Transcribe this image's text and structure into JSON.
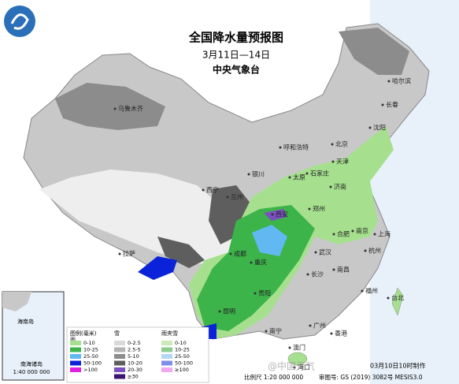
{
  "header": {
    "title": "全国降水量预报图",
    "period": "3月11日—14日",
    "agency": "中央气象台"
  },
  "cities": [
    "乌鲁木齐",
    "哈尔滨",
    "长春",
    "沈阳",
    "北京",
    "天津",
    "呼和浩特",
    "石家庄",
    "太原",
    "济南",
    "银川",
    "西宁",
    "兰州",
    "西安",
    "郑州",
    "合肥",
    "南京",
    "上海",
    "杭州",
    "武汉",
    "成都",
    "重庆",
    "长沙",
    "南昌",
    "福州",
    "贵阳",
    "昆明",
    "南宁",
    "广州",
    "澳门",
    "香港",
    "海口",
    "台北",
    "拉萨"
  ],
  "legend": {
    "title": "图例(毫米)",
    "rain": {
      "title": "雨",
      "items": [
        {
          "label": "0-10",
          "color": "#a6e08f"
        },
        {
          "label": "10-25",
          "color": "#3cb44a"
        },
        {
          "label": "25-50",
          "color": "#62b8f0"
        },
        {
          "label": "50-100",
          "color": "#0a22d8"
        },
        {
          "label": ">100",
          "color": "#e020e0"
        }
      ]
    },
    "snow": {
      "title": "雪",
      "items": [
        {
          "label": "0-2.5",
          "color": "#d9d9d9"
        },
        {
          "label": "2.5-5",
          "color": "#b3b3b3"
        },
        {
          "label": "5-10",
          "color": "#8c8c8c"
        },
        {
          "label": "10-20",
          "color": "#5e5e5e"
        },
        {
          "label": "20-30",
          "color": "#7a4fc0"
        },
        {
          "label": "≥30",
          "color": "#3a1470"
        }
      ]
    },
    "sleet": {
      "title": "雨夹雪",
      "items": [
        {
          "label": "0-10",
          "color": "#c9ebb8"
        },
        {
          "label": "10-25",
          "color": "#8dcc8a"
        },
        {
          "label": "25-50",
          "color": "#b4d8f4"
        },
        {
          "label": "50-100",
          "color": "#7f8ee8"
        },
        {
          "label": "≥100",
          "color": "#f0a8f0"
        }
      ]
    }
  },
  "inset": {
    "label": "南海诸岛",
    "island": "海南岛",
    "scale": "1:40 000 000"
  },
  "footer": {
    "scale": "比例尺 1:20 000 000",
    "approval": "审图号: GS (2019) 3082号 MESIS3.0",
    "made": "03月10日10时制作"
  },
  "watermark": "@中国天气"
}
